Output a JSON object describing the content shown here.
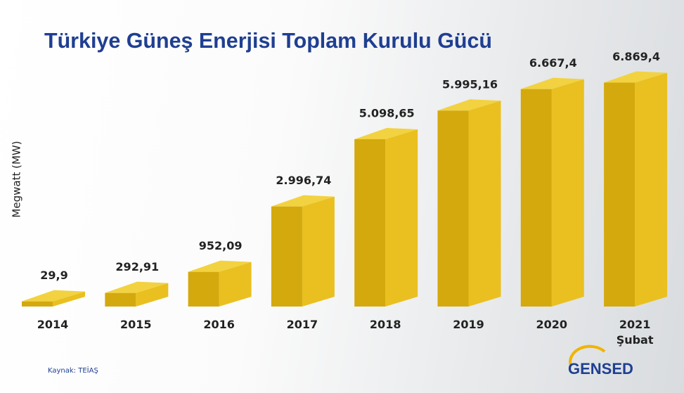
{
  "chart_data": {
    "type": "bar3d",
    "title": "Türkiye Güneş Enerjisi Toplam Kurulu Gücü",
    "y_label": "Megwatt (MW)",
    "categories": [
      "2014",
      "2015",
      "2016",
      "2017",
      "2018",
      "2019",
      "2020",
      "2021\nŞubat"
    ],
    "values": [
      29.9,
      292.91,
      952.09,
      2996.74,
      5098.65,
      5995.16,
      6667.4,
      6869.4
    ],
    "value_labels": [
      "29,9",
      "292,91",
      "952,09",
      "2.996,74",
      "5.098,65",
      "5.995,16",
      "6.667,4",
      "6.869,4"
    ],
    "color": "#d4a90e",
    "source": "Kaynak:  TEİAŞ",
    "logo": "GENSED"
  }
}
